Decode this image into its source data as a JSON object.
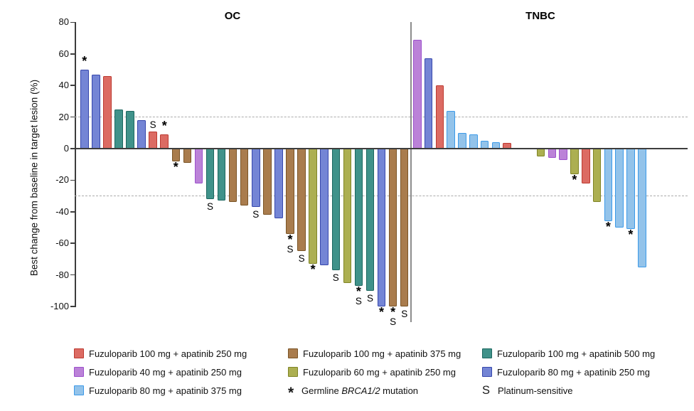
{
  "figure": {
    "y_axis_label": "Best change from baseline in target lesion (%)",
    "y_ticks": [
      80,
      60,
      40,
      20,
      0,
      -20,
      -40,
      -60,
      -80,
      -100
    ],
    "reference_lines": [
      20,
      -30
    ]
  },
  "chart_data": {
    "type": "bar",
    "subtype": "waterfall",
    "title": "",
    "xlabel": "",
    "ylabel": "Best change from baseline in target lesion (%)",
    "ylim": [
      -100,
      80
    ],
    "reference_lines": [
      20,
      -30
    ],
    "legend_position": "bottom",
    "marker_meanings": {
      "*": "Germline BRCA1/2 mutation",
      "S": "Platinum-sensitive"
    },
    "groups": {
      "red": {
        "label": "Fuzuloparib 100 mg + apatinib 250 mg",
        "fill": "#DC6B63",
        "stroke": "#BC3A31"
      },
      "purple": {
        "label": "Fuzuloparib 40 mg + apatinib 250 mg",
        "fill": "#BB82D8",
        "stroke": "#9C51CC"
      },
      "lightblue": {
        "label": "Fuzuloparib 80 mg + apatinib 375 mg",
        "fill": "#93C3EA",
        "stroke": "#3C9AE8"
      },
      "brown": {
        "label": "Fuzuloparib 100 mg + apatinib 375 mg",
        "fill": "#A97C4D",
        "stroke": "#7A5426"
      },
      "olive": {
        "label": "Fuzuloparib 60 mg + apatinib 250 mg",
        "fill": "#ACAF51",
        "stroke": "#7F8426"
      },
      "teal": {
        "label": "Fuzuloparib 100 mg + apatinib 500 mg",
        "fill": "#40928A",
        "stroke": "#1C675F"
      },
      "periwinkle": {
        "label": "Fuzuloparib 80 mg + apatinib 250 mg",
        "fill": "#7485D5",
        "stroke": "#3647AC"
      }
    },
    "panels": [
      {
        "name": "OC",
        "bars": [
          {
            "v": 50,
            "g": "periwinkle",
            "m": "*"
          },
          {
            "v": 47,
            "g": "periwinkle"
          },
          {
            "v": 46,
            "g": "red"
          },
          {
            "v": 25,
            "g": "teal"
          },
          {
            "v": 24,
            "g": "teal"
          },
          {
            "v": 18,
            "g": "periwinkle"
          },
          {
            "v": 11,
            "g": "red",
            "m": "S"
          },
          {
            "v": 9,
            "g": "red",
            "m": "*"
          },
          {
            "v": -8,
            "g": "brown",
            "m": "*"
          },
          {
            "v": -9,
            "g": "brown"
          },
          {
            "v": -22,
            "g": "purple"
          },
          {
            "v": -32,
            "g": "teal",
            "m": "S"
          },
          {
            "v": -33,
            "g": "teal"
          },
          {
            "v": -34,
            "g": "brown"
          },
          {
            "v": -36,
            "g": "brown"
          },
          {
            "v": -37,
            "g": "periwinkle",
            "m": "S"
          },
          {
            "v": -42,
            "g": "brown"
          },
          {
            "v": -44,
            "g": "periwinkle"
          },
          {
            "v": -54,
            "g": "brown",
            "m": "*S"
          },
          {
            "v": -65,
            "g": "brown",
            "m": "S"
          },
          {
            "v": -73,
            "g": "olive",
            "m": "*"
          },
          {
            "v": -74,
            "g": "periwinkle"
          },
          {
            "v": -77,
            "g": "teal",
            "m": "S"
          },
          {
            "v": -85,
            "g": "olive"
          },
          {
            "v": -87,
            "g": "teal",
            "m": "*S"
          },
          {
            "v": -90,
            "g": "teal",
            "m": "S"
          },
          {
            "v": -100,
            "g": "periwinkle",
            "m": "*"
          },
          {
            "v": -100,
            "g": "brown",
            "m": "*S"
          },
          {
            "v": -100,
            "g": "brown",
            "m": "S"
          }
        ]
      },
      {
        "name": "TNBC",
        "bars": [
          {
            "v": 69,
            "g": "purple"
          },
          {
            "v": 57,
            "g": "periwinkle"
          },
          {
            "v": 40,
            "g": "red"
          },
          {
            "v": 24,
            "g": "lightblue"
          },
          {
            "v": 10,
            "g": "lightblue"
          },
          {
            "v": 9,
            "g": "lightblue"
          },
          {
            "v": 5,
            "g": "lightblue"
          },
          {
            "v": 4,
            "g": "lightblue"
          },
          {
            "v": 3.5,
            "g": "red"
          },
          {
            "v": 0,
            "g": null
          },
          {
            "v": 0,
            "g": null
          },
          {
            "v": -5,
            "g": "olive"
          },
          {
            "v": -6,
            "g": "purple"
          },
          {
            "v": -7,
            "g": "purple"
          },
          {
            "v": -16,
            "g": "olive",
            "m": "*"
          },
          {
            "v": -22,
            "g": "red"
          },
          {
            "v": -34,
            "g": "olive"
          },
          {
            "v": -46,
            "g": "lightblue",
            "m": "*"
          },
          {
            "v": -50,
            "g": "lightblue"
          },
          {
            "v": -51,
            "g": "lightblue",
            "m": "*"
          },
          {
            "v": -75,
            "g": "lightblue"
          }
        ]
      }
    ]
  },
  "legend": {
    "columns": [
      {
        "items": [
          {
            "g": "red"
          },
          {
            "g": "purple"
          },
          {
            "g": "lightblue"
          }
        ]
      },
      {
        "items": [
          {
            "g": "brown"
          },
          {
            "g": "olive"
          },
          {
            "symbol": "*",
            "prefix": "Germline ",
            "italic": "BRCA1/2",
            "suffix": " mutation"
          }
        ]
      },
      {
        "items": [
          {
            "g": "teal"
          },
          {
            "g": "periwinkle"
          },
          {
            "symbol": "S",
            "label": "Platinum-sensitive"
          }
        ]
      }
    ]
  }
}
